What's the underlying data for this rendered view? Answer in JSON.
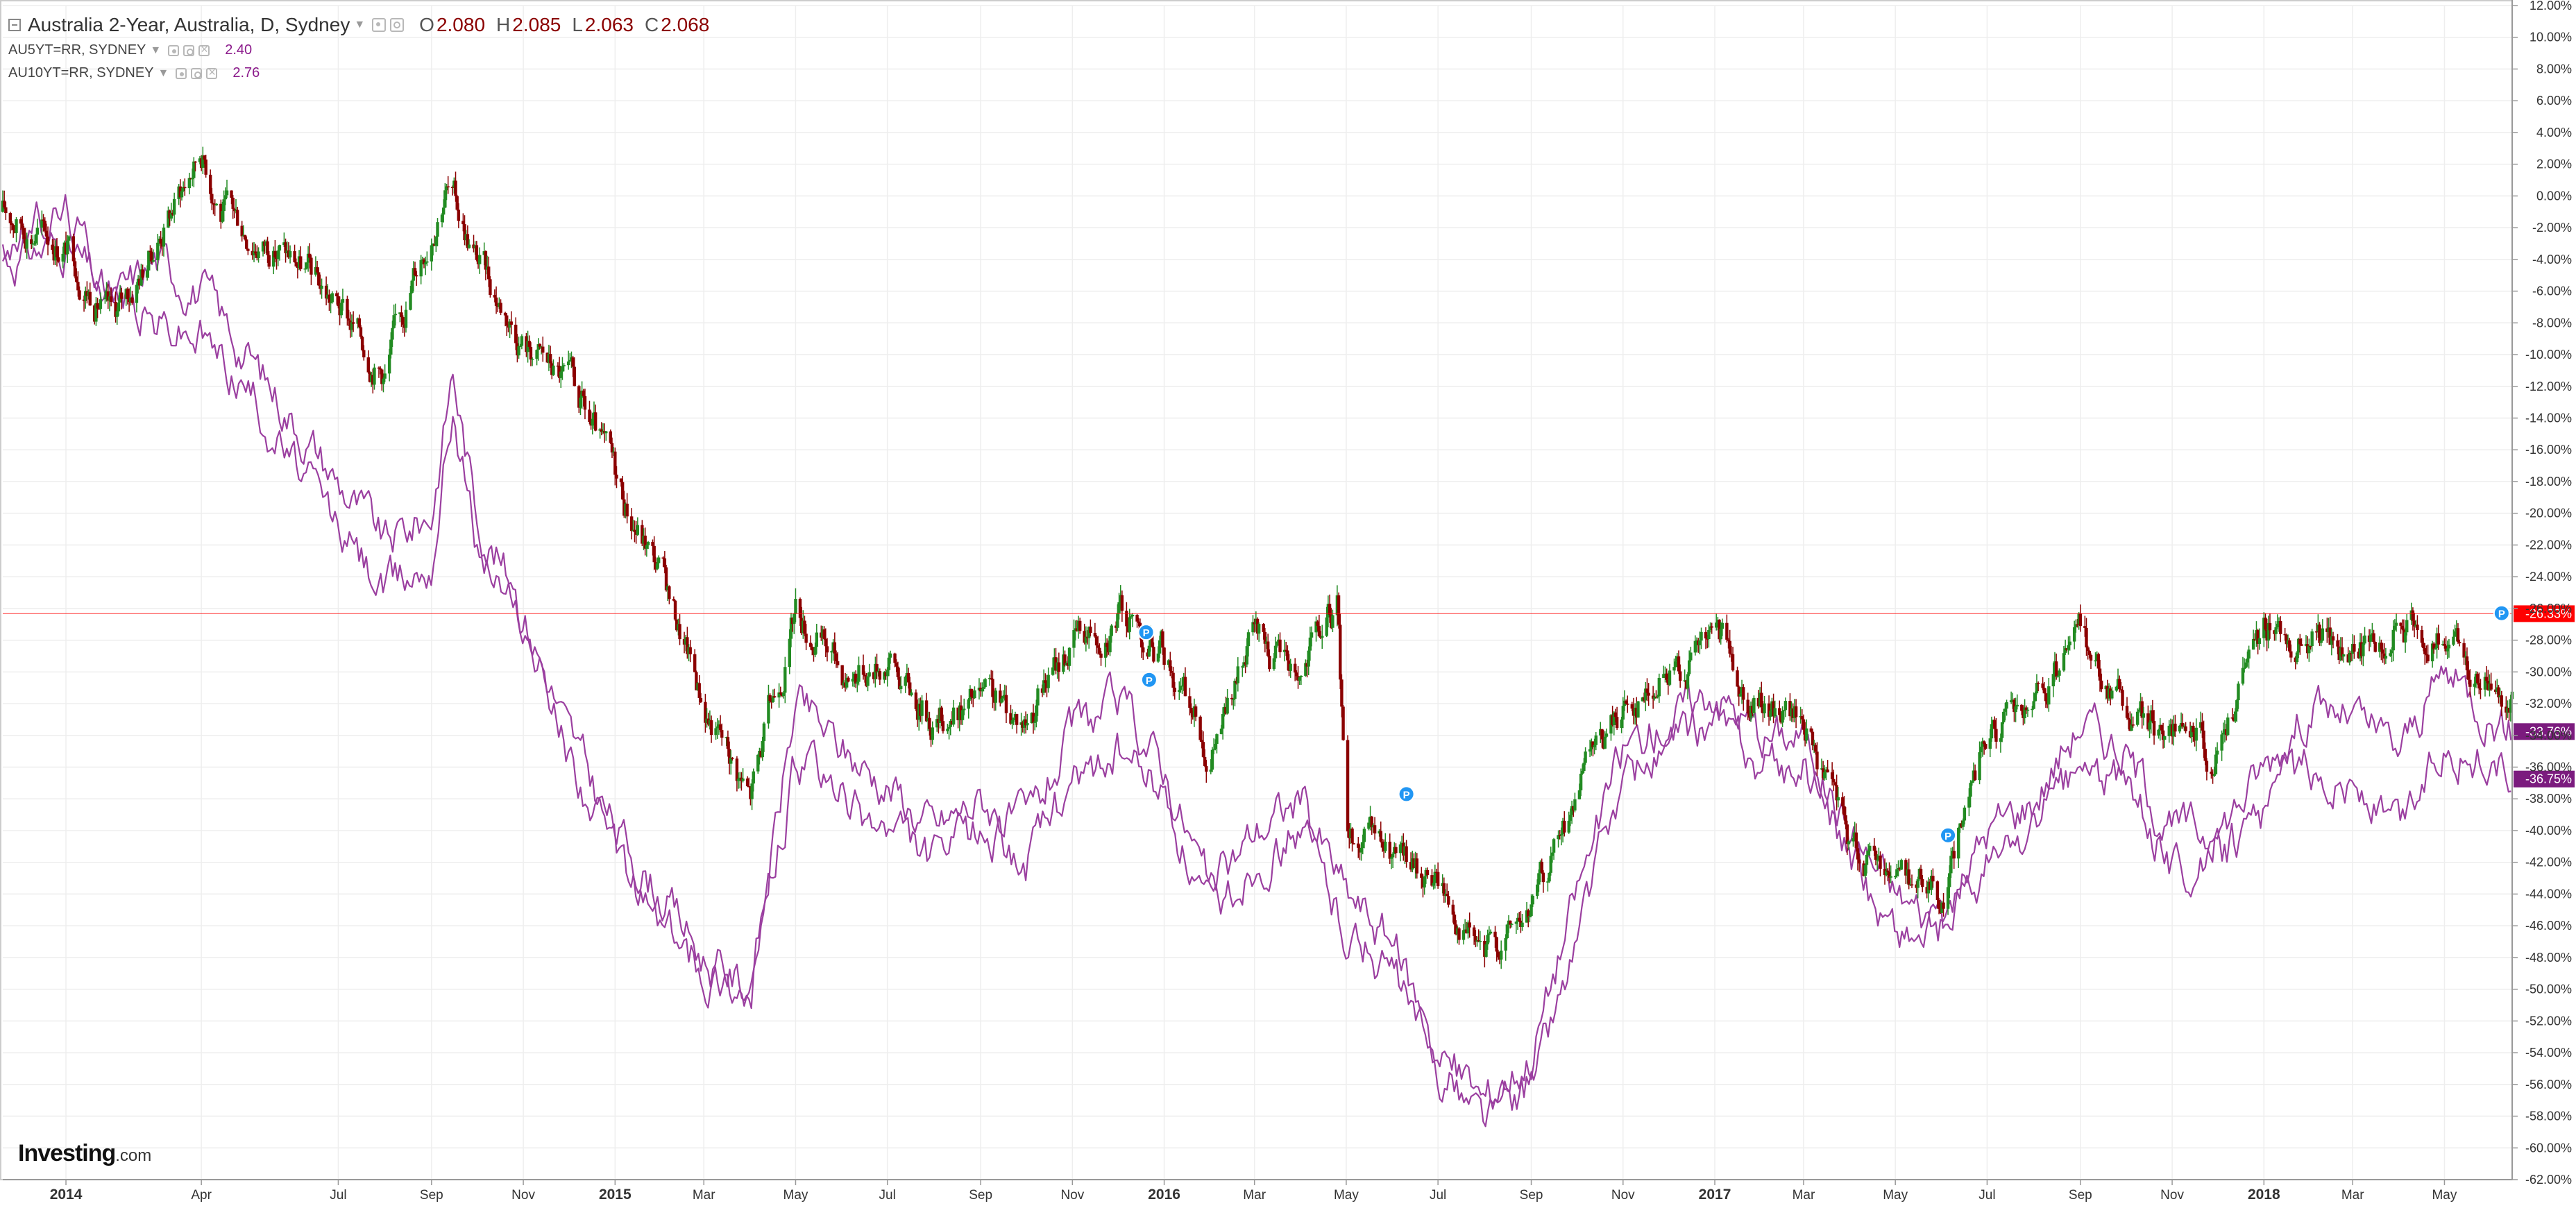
{
  "legend": {
    "main_title": "Australia 2-Year, Australia, D, Sydney",
    "open_label": "O",
    "open_value": "2.080",
    "high_label": "H",
    "high_value": "2.085",
    "low_label": "L",
    "low_value": "2.063",
    "close_label": "C",
    "close_value": "2.068",
    "overlays": [
      {
        "name": "AU5YT=RR, SYDNEY",
        "value": "2.40"
      },
      {
        "name": "AU10YT=RR, SYDNEY",
        "value": "2.76"
      }
    ]
  },
  "brand": {
    "logo_main": "Investing",
    "logo_suffix": ".com"
  },
  "colors": {
    "up": "#228B22",
    "down": "#8B0000",
    "overlay": "#9B3FA0",
    "last_price": "#FF0000",
    "overlay_badge": "#7B1B7E",
    "badge_p": "#2196F3",
    "grid": "#EEEEEE",
    "axis_text": "#333333"
  },
  "chart_data": {
    "type": "candlestick",
    "title": "Australia 2-Year, Australia, D, Sydney",
    "x_range": [
      "2013-11-20",
      "2018-06-15"
    ],
    "y_range": [
      -62,
      12
    ],
    "y_unit": "%",
    "y_ticks": [
      "12.00%",
      "10.00%",
      "8.00%",
      "6.00%",
      "4.00%",
      "2.00%",
      "0.00%",
      "-2.00%",
      "-4.00%",
      "-6.00%",
      "-8.00%",
      "-10.00%",
      "-12.00%",
      "-14.00%",
      "-16.00%",
      "-18.00%",
      "-20.00%",
      "-22.00%",
      "-24.00%",
      "-26.00%",
      "-28.00%",
      "-30.00%",
      "-32.00%",
      "-34.00%",
      "-36.00%",
      "-38.00%",
      "-40.00%",
      "-42.00%",
      "-44.00%",
      "-46.00%",
      "-48.00%",
      "-50.00%",
      "-52.00%",
      "-54.00%",
      "-56.00%",
      "-58.00%",
      "-60.00%",
      "-62.00%"
    ],
    "x_ticks": [
      {
        "label": "2014",
        "date": "2014-01-01",
        "major": true
      },
      {
        "label": "Apr",
        "date": "2014-04-01"
      },
      {
        "label": "Jul",
        "date": "2014-07-01"
      },
      {
        "label": "Sep",
        "date": "2014-09-01"
      },
      {
        "label": "Nov",
        "date": "2014-11-01"
      },
      {
        "label": "2015",
        "date": "2015-01-01",
        "major": true
      },
      {
        "label": "Mar",
        "date": "2015-03-01"
      },
      {
        "label": "May",
        "date": "2015-05-01"
      },
      {
        "label": "Jul",
        "date": "2015-07-01"
      },
      {
        "label": "Sep",
        "date": "2015-09-01"
      },
      {
        "label": "Nov",
        "date": "2015-11-01"
      },
      {
        "label": "2016",
        "date": "2016-01-01",
        "major": true
      },
      {
        "label": "Mar",
        "date": "2016-03-01"
      },
      {
        "label": "May",
        "date": "2016-05-01"
      },
      {
        "label": "Jul",
        "date": "2016-07-01"
      },
      {
        "label": "Sep",
        "date": "2016-09-01"
      },
      {
        "label": "Nov",
        "date": "2016-11-01"
      },
      {
        "label": "2017",
        "date": "2017-01-01",
        "major": true
      },
      {
        "label": "Mar",
        "date": "2017-03-01"
      },
      {
        "label": "May",
        "date": "2017-05-01"
      },
      {
        "label": "Jul",
        "date": "2017-07-01"
      },
      {
        "label": "Sep",
        "date": "2017-09-01"
      },
      {
        "label": "Nov",
        "date": "2017-11-01"
      },
      {
        "label": "2018",
        "date": "2018-01-01",
        "major": true
      },
      {
        "label": "Mar",
        "date": "2018-03-01"
      },
      {
        "label": "May",
        "date": "2018-05-01"
      }
    ],
    "reference_line": {
      "value": -26.33,
      "label": "-26.33%"
    },
    "end_labels": [
      {
        "series": "AU5YT=RR, SYDNEY",
        "value": -33.76,
        "label": "-33.76%"
      },
      {
        "series": "AU10YT=RR, SYDNEY",
        "value": -36.75,
        "label": "-36.75%"
      }
    ],
    "markers": [
      {
        "label": "P",
        "date": "2015-12-20",
        "value": -27.5
      },
      {
        "label": "P",
        "date": "2015-12-22",
        "value": -30.5
      },
      {
        "label": "P",
        "date": "2016-06-10",
        "value": -37.7
      },
      {
        "label": "P",
        "date": "2017-06-05",
        "value": -40.3
      },
      {
        "label": "P",
        "date": "2018-06-08",
        "value": -26.3
      }
    ],
    "candle_series": {
      "name": "Australia 2-Year, Australia, D, Sydney",
      "dates": [
        "2013-11-20",
        "2014-01-01",
        "2014-02-01",
        "2014-03-01",
        "2014-04-01",
        "2014-04-15",
        "2014-06-01",
        "2014-07-01",
        "2014-08-01",
        "2014-08-20",
        "2014-09-10",
        "2014-10-01",
        "2014-11-01",
        "2014-12-01",
        "2015-01-01",
        "2015-02-01",
        "2015-03-01",
        "2015-04-01",
        "2015-05-01",
        "2015-06-01",
        "2015-07-01",
        "2015-08-01",
        "2015-09-01",
        "2015-10-01",
        "2015-11-01",
        "2015-12-01",
        "2016-01-01",
        "2016-02-01",
        "2016-03-01",
        "2016-04-01",
        "2016-04-25",
        "2016-05-01",
        "2016-06-01",
        "2016-07-01",
        "2016-08-01",
        "2016-09-01",
        "2016-10-01",
        "2016-11-01",
        "2016-12-01",
        "2017-01-01",
        "2017-02-01",
        "2017-03-01",
        "2017-04-01",
        "2017-05-01",
        "2017-06-01",
        "2017-07-01",
        "2017-08-01",
        "2017-09-01",
        "2017-10-01",
        "2017-11-01",
        "2017-12-01",
        "2018-01-01",
        "2018-02-01",
        "2018-03-01",
        "2018-04-01",
        "2018-05-01",
        "2018-06-15"
      ],
      "values": [
        -1,
        -3,
        -8,
        -3,
        3,
        -1,
        -4,
        -7,
        -11,
        -5,
        1,
        -4,
        -9,
        -12,
        -18,
        -24,
        -32,
        -38,
        -26,
        -30,
        -29,
        -33,
        -32,
        -33,
        -28,
        -26,
        -29,
        -35,
        -28,
        -30,
        -26,
        -40,
        -42,
        -43,
        -48,
        -45,
        -38,
        -32,
        -30,
        -28,
        -32,
        -33,
        -41,
        -42,
        -44,
        -34,
        -33,
        -28,
        -32,
        -34,
        -35,
        -27,
        -28,
        -29,
        -27,
        -28,
        -32
      ]
    },
    "line_series": [
      {
        "name": "AU5YT=RR, SYDNEY",
        "dates": [
          "2013-11-20",
          "2014-01-01",
          "2014-02-01",
          "2014-03-01",
          "2014-04-01",
          "2014-05-01",
          "2014-06-01",
          "2014-07-01",
          "2014-08-01",
          "2014-09-01",
          "2014-09-15",
          "2014-10-01",
          "2014-11-01",
          "2014-12-01",
          "2015-01-01",
          "2015-02-01",
          "2015-03-01",
          "2015-04-01",
          "2015-05-01",
          "2015-06-01",
          "2015-07-01",
          "2015-08-01",
          "2015-09-01",
          "2015-10-01",
          "2015-11-01",
          "2015-12-01",
          "2016-01-01",
          "2016-02-01",
          "2016-03-01",
          "2016-04-01",
          "2016-05-01",
          "2016-06-01",
          "2016-07-01",
          "2016-08-01",
          "2016-09-01",
          "2016-10-01",
          "2016-11-01",
          "2016-12-01",
          "2017-01-01",
          "2017-02-01",
          "2017-03-01",
          "2017-04-01",
          "2017-05-01",
          "2017-06-01",
          "2017-07-01",
          "2017-08-01",
          "2017-09-01",
          "2017-10-01",
          "2017-11-01",
          "2017-12-01",
          "2018-01-01",
          "2018-02-01",
          "2018-03-01",
          "2018-04-01",
          "2018-05-01",
          "2018-06-15"
        ],
        "values": [
          -4,
          -3,
          -7,
          -4,
          -6,
          -10,
          -14,
          -18,
          -22,
          -20,
          -11,
          -20,
          -26,
          -34,
          -40,
          -44,
          -48,
          -50,
          -32,
          -35,
          -37,
          -40,
          -38,
          -40,
          -34,
          -32,
          -36,
          -44,
          -40,
          -38,
          -44,
          -47,
          -54,
          -57,
          -54,
          -44,
          -35,
          -33,
          -31,
          -34,
          -34,
          -40,
          -44,
          -46,
          -40,
          -38,
          -33,
          -35,
          -40,
          -40,
          -36,
          -32,
          -33,
          -35,
          -30,
          -33.76
        ]
      },
      {
        "name": "AU10YT=RR, SYDNEY",
        "dates": [
          "2013-11-20",
          "2014-01-01",
          "2014-02-01",
          "2014-03-01",
          "2014-04-01",
          "2014-05-01",
          "2014-06-01",
          "2014-07-01",
          "2014-08-01",
          "2014-09-01",
          "2014-09-15",
          "2014-10-01",
          "2014-11-01",
          "2014-12-01",
          "2015-01-01",
          "2015-02-01",
          "2015-03-01",
          "2015-04-01",
          "2015-05-01",
          "2015-06-01",
          "2015-07-01",
          "2015-08-01",
          "2015-09-01",
          "2015-10-01",
          "2015-11-01",
          "2015-12-01",
          "2016-01-01",
          "2016-02-01",
          "2016-03-01",
          "2016-04-01",
          "2016-05-01",
          "2016-06-01",
          "2016-07-01",
          "2016-08-01",
          "2016-09-01",
          "2016-10-01",
          "2016-11-01",
          "2016-12-01",
          "2017-01-01",
          "2017-02-01",
          "2017-03-01",
          "2017-04-01",
          "2017-05-01",
          "2017-06-01",
          "2017-07-01",
          "2017-08-01",
          "2017-09-01",
          "2017-10-01",
          "2017-11-01",
          "2017-12-01",
          "2018-01-01",
          "2018-02-01",
          "2018-03-01",
          "2018-04-01",
          "2018-05-01",
          "2018-06-15"
        ],
        "values": [
          -3,
          -1,
          -6,
          -8,
          -9,
          -12,
          -17,
          -21,
          -25,
          -23,
          -13,
          -22,
          -27,
          -35,
          -42,
          -46,
          -49,
          -50,
          -36,
          -38,
          -40,
          -42,
          -40,
          -42,
          -37,
          -35,
          -38,
          -46,
          -42,
          -40,
          -46,
          -49,
          -55,
          -58,
          -56,
          -47,
          -37,
          -35,
          -33,
          -36,
          -36,
          -42,
          -46,
          -47,
          -42,
          -40,
          -36,
          -37,
          -42,
          -42,
          -39,
          -36,
          -37,
          -40,
          -34,
          -36.75
        ]
      }
    ]
  }
}
